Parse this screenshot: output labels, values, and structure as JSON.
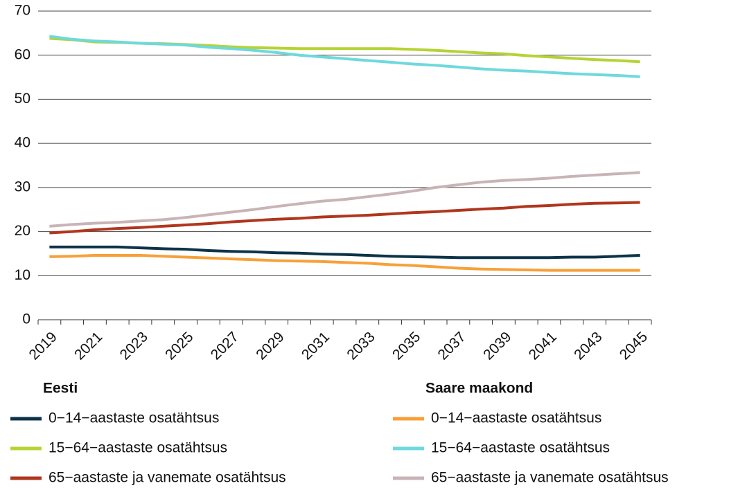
{
  "chart_data": {
    "type": "line",
    "categories": [
      "2019",
      null,
      "2021",
      null,
      "2023",
      null,
      "2025",
      null,
      "2027",
      null,
      "2029",
      null,
      "2031",
      null,
      "2033",
      null,
      "2035",
      null,
      "2037",
      null,
      "2039",
      null,
      "2041",
      null,
      "2043",
      null,
      "2045"
    ],
    "ylim": [
      0,
      70
    ],
    "yticks": [
      0,
      10,
      20,
      30,
      40,
      50,
      60,
      70
    ],
    "grid": true,
    "series_groups": [
      {
        "name": "Eesti",
        "series": [
          {
            "name": "0−14−aastaste osatähtsus",
            "color": "#0d3349",
            "values": [
              16.5,
              16.5,
              16.5,
              16.5,
              16.3,
              16.1,
              16.0,
              15.7,
              15.5,
              15.4,
              15.2,
              15.1,
              14.9,
              14.8,
              14.6,
              14.4,
              14.3,
              14.2,
              14.1,
              14.1,
              14.1,
              14.1,
              14.1,
              14.2,
              14.2,
              14.4,
              14.6
            ]
          },
          {
            "name": "15−64−aastaste osatähtsus",
            "color": "#b5d334",
            "values": [
              63.8,
              63.5,
              63.0,
              62.9,
              62.7,
              62.6,
              62.4,
              62.2,
              61.9,
              61.7,
              61.6,
              61.5,
              61.5,
              61.5,
              61.5,
              61.5,
              61.3,
              61.1,
              60.8,
              60.5,
              60.3,
              59.9,
              59.6,
              59.3,
              59.0,
              58.8,
              58.5
            ]
          },
          {
            "name": "65−aastaste ja vanemate osatähtsus",
            "color": "#b0361e",
            "values": [
              19.7,
              20.0,
              20.4,
              20.7,
              20.9,
              21.2,
              21.5,
              21.8,
              22.2,
              22.5,
              22.8,
              23.0,
              23.3,
              23.5,
              23.7,
              24.0,
              24.3,
              24.5,
              24.8,
              25.1,
              25.3,
              25.7,
              25.9,
              26.2,
              26.4,
              26.5,
              26.6
            ]
          }
        ]
      },
      {
        "name": "Saare maakond",
        "series": [
          {
            "name": "0−14−aastaste osatähtsus",
            "color": "#f7a03a",
            "values": [
              14.3,
              14.4,
              14.6,
              14.6,
              14.6,
              14.4,
              14.2,
              14.0,
              13.8,
              13.6,
              13.4,
              13.3,
              13.2,
              13.0,
              12.8,
              12.5,
              12.3,
              12.0,
              11.7,
              11.5,
              11.4,
              11.3,
              11.2,
              11.2,
              11.2,
              11.2,
              11.2
            ]
          },
          {
            "name": "15−64−aastaste osatähtsus",
            "color": "#6ed9dc",
            "values": [
              64.3,
              63.6,
              63.2,
              63.0,
              62.7,
              62.5,
              62.3,
              61.8,
              61.5,
              61.1,
              60.6,
              60.0,
              59.6,
              59.2,
              58.8,
              58.4,
              58.0,
              57.7,
              57.3,
              56.9,
              56.6,
              56.4,
              56.1,
              55.8,
              55.6,
              55.4,
              55.1
            ]
          },
          {
            "name": "65−aastaste ja vanemate osatähtsus",
            "color": "#c8b4b6",
            "values": [
              21.2,
              21.6,
              21.9,
              22.1,
              22.4,
              22.7,
              23.2,
              23.8,
              24.4,
              25.0,
              25.7,
              26.3,
              26.9,
              27.3,
              27.9,
              28.5,
              29.2,
              30.0,
              30.6,
              31.2,
              31.6,
              31.8,
              32.1,
              32.5,
              32.8,
              33.1,
              33.4
            ]
          }
        ]
      }
    ]
  }
}
